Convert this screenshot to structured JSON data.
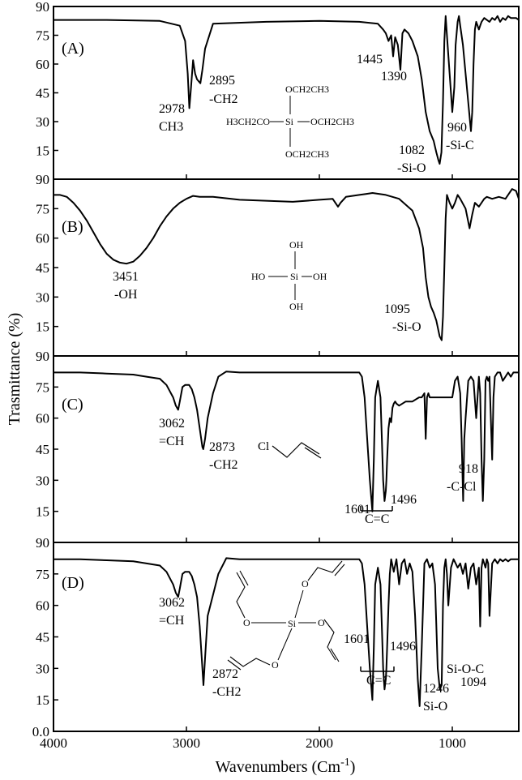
{
  "figure": {
    "ylabel": "Trasmittance (%)",
    "xlabel_main": "Wavenumbers (Cm",
    "xlabel_sup": "-1",
    "xlabel_close": ")",
    "x_ticks": [
      "4000",
      "3000",
      "2000",
      "1000"
    ],
    "x_tick_values": [
      4000,
      3000,
      2000,
      1000
    ],
    "xlim": [
      4000,
      500
    ]
  },
  "chart_data": [
    {
      "type": "line",
      "panel": "(A)",
      "ylim": [
        0,
        90
      ],
      "y_ticks": [
        "90",
        "75",
        "60",
        "45",
        "30",
        "15"
      ],
      "y_tick_values": [
        90,
        75,
        60,
        45,
        30,
        15
      ],
      "series": [
        {
          "x": [
            4000,
            3600,
            3200,
            3050,
            3010,
            2990,
            2978,
            2965,
            2950,
            2935,
            2920,
            2895,
            2880,
            2860,
            2800,
            2400,
            2000,
            1700,
            1560,
            1520,
            1500,
            1480,
            1460,
            1445,
            1430,
            1410,
            1390,
            1375,
            1360,
            1330,
            1300,
            1260,
            1230,
            1200,
            1170,
            1140,
            1120,
            1105,
            1095,
            1082,
            1070,
            1060,
            1050,
            1040,
            1020,
            1000,
            985,
            975,
            960,
            950,
            940,
            920,
            900,
            880,
            860,
            850,
            840,
            830,
            820,
            810,
            800,
            790,
            780,
            760,
            740,
            720,
            700,
            680,
            660,
            640,
            620,
            600,
            580,
            560,
            540,
            520,
            500
          ],
          "y": [
            83,
            83,
            82.5,
            80,
            72,
            55,
            37,
            48,
            62,
            55,
            52,
            50,
            57,
            68,
            81,
            82,
            82.5,
            82,
            81,
            78,
            76,
            72,
            75,
            64,
            74,
            70,
            57,
            76,
            78,
            76,
            72,
            64,
            52,
            35,
            25,
            20,
            14,
            10,
            8,
            14,
            40,
            72,
            85,
            75,
            55,
            35,
            48,
            70,
            82,
            85,
            80,
            70,
            55,
            40,
            25,
            35,
            60,
            78,
            82,
            80,
            78,
            80,
            82,
            84,
            83,
            82,
            84,
            83,
            85,
            82,
            84,
            83,
            85,
            84,
            84,
            84,
            83
          ]
        }
      ],
      "annotations": [
        {
          "id": "peak-2978",
          "lines": [
            "2978",
            "CH3"
          ]
        },
        {
          "id": "peak-2895",
          "lines": [
            "2895",
            "-CH2"
          ]
        },
        {
          "id": "peak-1445",
          "lines": [
            "1445"
          ]
        },
        {
          "id": "peak-1390",
          "lines": [
            "1390"
          ]
        },
        {
          "id": "peak-1082",
          "lines": [
            "1082",
            "-Si-O"
          ]
        },
        {
          "id": "peak-960",
          "lines": [
            "960",
            "-Si-C"
          ]
        }
      ],
      "structure": {
        "center": "Si",
        "top": "OCH2CH3",
        "bottom": "OCH2CH3",
        "left": "H3CH2CO",
        "right": "OCH2CH3"
      }
    },
    {
      "type": "line",
      "panel": "(B)",
      "ylim": [
        0,
        90
      ],
      "y_ticks": [
        "90",
        "75",
        "60",
        "45",
        "30",
        "15"
      ],
      "y_tick_values": [
        90,
        75,
        60,
        45,
        30,
        15
      ],
      "series": [
        {
          "x": [
            4000,
            3950,
            3900,
            3850,
            3800,
            3750,
            3700,
            3650,
            3600,
            3550,
            3500,
            3451,
            3400,
            3350,
            3300,
            3250,
            3200,
            3150,
            3100,
            3050,
            3000,
            2950,
            2900,
            2800,
            2600,
            2400,
            2200,
            2000,
            1900,
            1880,
            1860,
            1840,
            1800,
            1700,
            1650,
            1600,
            1500,
            1400,
            1300,
            1250,
            1220,
            1200,
            1180,
            1160,
            1140,
            1120,
            1095,
            1080,
            1070,
            1060,
            1050,
            1040,
            1020,
            1000,
            980,
            960,
            940,
            900,
            870,
            850,
            830,
            800,
            780,
            760,
            740,
            700,
            650,
            600,
            550,
            520,
            500
          ],
          "y": [
            82,
            82,
            81,
            78,
            74,
            69,
            63,
            57,
            52,
            49,
            47.5,
            47,
            48,
            51,
            55,
            60,
            66,
            71,
            75,
            78,
            80,
            81.5,
            81,
            81,
            79.5,
            79,
            78.5,
            79.5,
            80,
            78,
            76,
            78,
            81,
            82,
            82.5,
            83,
            82,
            80,
            74,
            65,
            55,
            40,
            30,
            25,
            22,
            18,
            10,
            8,
            20,
            45,
            70,
            82,
            78,
            75,
            78,
            82,
            80,
            75,
            65,
            72,
            78,
            76,
            78,
            80,
            81,
            80,
            81,
            80,
            85,
            84,
            80
          ]
        }
      ],
      "annotations": [
        {
          "id": "peak-3451",
          "lines": [
            "3451",
            "-OH"
          ]
        },
        {
          "id": "peak-1095",
          "lines": [
            "1095",
            "-Si-O"
          ]
        }
      ],
      "structure": {
        "center": "Si",
        "top": "OH",
        "bottom": "OH",
        "left": "HO",
        "right": "OH"
      }
    },
    {
      "type": "line",
      "panel": "(C)",
      "ylim": [
        0,
        90
      ],
      "y_ticks": [
        "90",
        "75",
        "60",
        "45",
        "30",
        "15"
      ],
      "y_tick_values": [
        90,
        75,
        60,
        45,
        30,
        15
      ],
      "series": [
        {
          "x": [
            4000,
            3800,
            3600,
            3400,
            3300,
            3200,
            3150,
            3100,
            3080,
            3062,
            3050,
            3030,
            3010,
            3000,
            2980,
            2960,
            2940,
            2920,
            2900,
            2880,
            2873,
            2860,
            2840,
            2800,
            2760,
            2700,
            2600,
            2400,
            2200,
            2000,
            1800,
            1700,
            1680,
            1660,
            1640,
            1620,
            1601,
            1590,
            1580,
            1560,
            1540,
            1530,
            1520,
            1510,
            1500,
            1496,
            1490,
            1480,
            1470,
            1460,
            1450,
            1440,
            1430,
            1420,
            1400,
            1350,
            1300,
            1250,
            1230,
            1210,
            1200,
            1190,
            1180,
            1170,
            1100,
            1000,
            980,
            960,
            940,
            930,
            918,
            910,
            900,
            880,
            860,
            840,
            820,
            800,
            790,
            780,
            770,
            760,
            750,
            740,
            730,
            720,
            700,
            690,
            680,
            660,
            640,
            620,
            600,
            580,
            560,
            540,
            520,
            500
          ],
          "y": [
            82,
            82,
            81.5,
            81,
            80,
            79,
            76,
            70,
            66,
            64,
            68,
            75,
            76,
            76,
            76,
            74,
            70,
            64,
            55,
            46,
            45,
            50,
            60,
            72,
            80,
            82.5,
            82,
            82,
            82,
            82,
            82,
            82,
            80,
            70,
            50,
            30,
            15,
            40,
            70,
            78,
            70,
            50,
            30,
            20,
            25,
            30,
            40,
            55,
            60,
            58,
            65,
            67,
            68,
            67,
            66,
            68,
            68,
            70,
            70,
            72,
            50,
            70,
            72,
            70,
            70,
            70,
            78,
            80,
            72,
            50,
            20,
            50,
            60,
            78,
            80,
            78,
            60,
            80,
            72,
            40,
            20,
            40,
            78,
            80,
            78,
            80,
            40,
            70,
            80,
            82,
            82,
            78,
            80,
            82,
            80,
            82,
            82,
            82
          ]
        }
      ],
      "annotations": [
        {
          "id": "peak-3062",
          "lines": [
            "3062",
            "=CH"
          ]
        },
        {
          "id": "peak-2873",
          "lines": [
            "2873",
            "-CH2"
          ]
        },
        {
          "id": "peak-1601",
          "lines": [
            "1601"
          ]
        },
        {
          "id": "peak-1496",
          "lines": [
            "1496"
          ]
        },
        {
          "id": "bracket-cc",
          "lines": [
            "C=C"
          ]
        },
        {
          "id": "peak-918",
          "lines": [
            "918",
            "-C-Cl"
          ]
        }
      ],
      "structure": {
        "atom": "Cl"
      }
    },
    {
      "type": "line",
      "panel": "(D)",
      "ylim": [
        0,
        90
      ],
      "y_ticks": [
        "90",
        "75",
        "60",
        "45",
        "30",
        "15",
        "0.0"
      ],
      "y_tick_values": [
        90,
        75,
        60,
        45,
        30,
        15,
        0
      ],
      "series": [
        {
          "x": [
            4000,
            3800,
            3600,
            3400,
            3300,
            3200,
            3150,
            3100,
            3080,
            3062,
            3050,
            3030,
            3010,
            3000,
            2980,
            2960,
            2940,
            2920,
            2900,
            2880,
            2872,
            2860,
            2840,
            2800,
            2760,
            2700,
            2600,
            2400,
            2200,
            2000,
            1800,
            1700,
            1680,
            1660,
            1640,
            1620,
            1601,
            1590,
            1580,
            1560,
            1540,
            1530,
            1520,
            1510,
            1500,
            1496,
            1490,
            1480,
            1470,
            1460,
            1440,
            1420,
            1400,
            1380,
            1360,
            1340,
            1320,
            1300,
            1280,
            1260,
            1246,
            1230,
            1210,
            1190,
            1170,
            1150,
            1130,
            1110,
            1094,
            1080,
            1070,
            1060,
            1050,
            1040,
            1030,
            1010,
            990,
            960,
            940,
            920,
            900,
            880,
            860,
            840,
            820,
            800,
            790,
            780,
            770,
            760,
            750,
            740,
            730,
            720,
            700,
            680,
            660,
            640,
            620,
            600,
            580,
            560,
            540,
            520,
            500
          ],
          "y": [
            82,
            82,
            81.5,
            81,
            80,
            79,
            76,
            70,
            66,
            64,
            68,
            75,
            76,
            76,
            76,
            74,
            70,
            64,
            50,
            30,
            22,
            35,
            55,
            65,
            75,
            82.5,
            82,
            82,
            82,
            82,
            82,
            82,
            80,
            70,
            50,
            30,
            15,
            40,
            70,
            78,
            70,
            50,
            30,
            20,
            25,
            30,
            40,
            60,
            75,
            82,
            76,
            82,
            70,
            80,
            82,
            75,
            80,
            76,
            55,
            25,
            12,
            40,
            80,
            82,
            78,
            80,
            70,
            30,
            20,
            22,
            60,
            78,
            82,
            75,
            60,
            78,
            82,
            78,
            80,
            75,
            80,
            68,
            78,
            80,
            70,
            78,
            50,
            78,
            82,
            80,
            78,
            82,
            80,
            55,
            80,
            82,
            80,
            82,
            81,
            82,
            81,
            82,
            82,
            82,
            82
          ]
        }
      ],
      "annotations": [
        {
          "id": "peak-3062",
          "lines": [
            "3062",
            "=CH"
          ]
        },
        {
          "id": "peak-2872",
          "lines": [
            "2872",
            "-CH2"
          ]
        },
        {
          "id": "peak-1601",
          "lines": [
            "1601"
          ]
        },
        {
          "id": "peak-1496",
          "lines": [
            "1496"
          ]
        },
        {
          "id": "bracket-cc",
          "lines": [
            "C=C"
          ]
        },
        {
          "id": "peak-1246",
          "lines": [
            "1246",
            "Si-O"
          ]
        },
        {
          "id": "peak-sioc",
          "lines": [
            "Si-O-C",
            "1094"
          ]
        }
      ],
      "structure": {
        "center": "Si",
        "arms": [
          "O",
          "O",
          "O",
          "O"
        ]
      }
    }
  ]
}
